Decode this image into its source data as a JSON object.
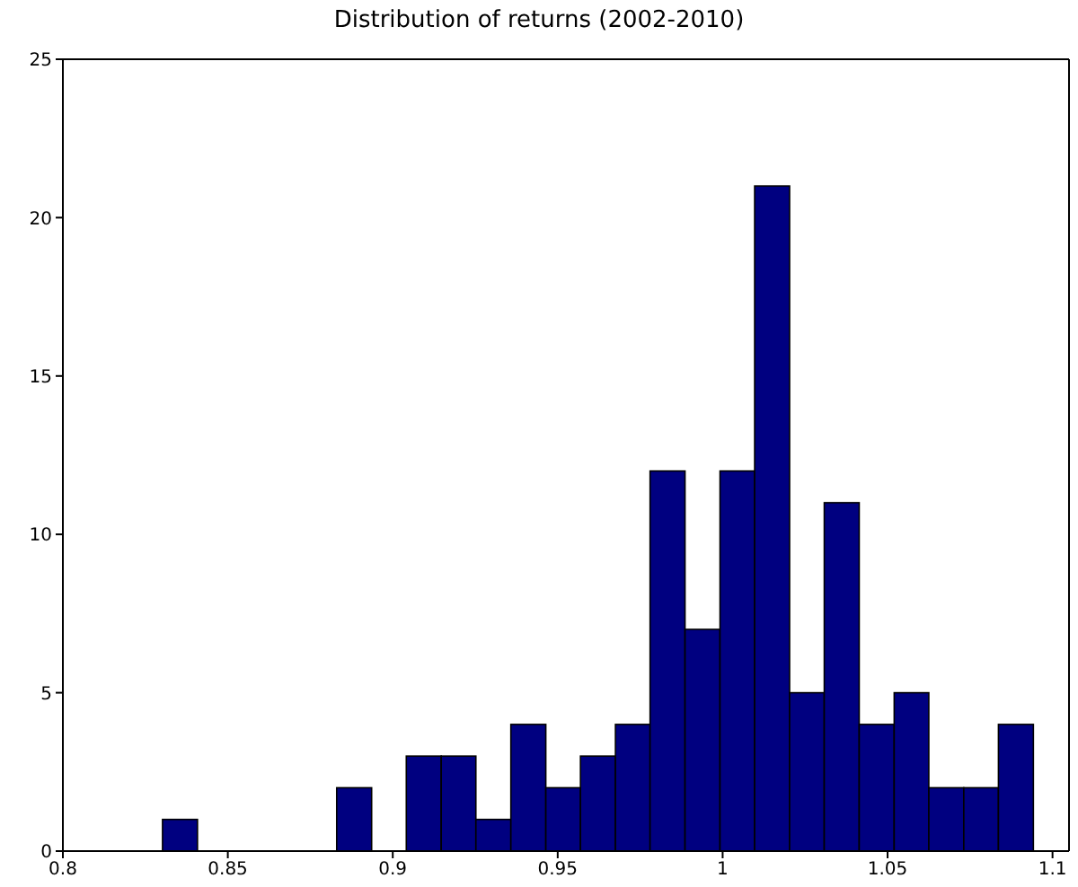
{
  "chart_data": {
    "type": "histogram",
    "title": "Distribution of returns (2002-2010)",
    "bins": [
      0.8302,
      0.8408,
      0.8513,
      0.8619,
      0.8724,
      0.883,
      0.8936,
      0.9041,
      0.9147,
      0.9252,
      0.9358,
      0.9464,
      0.9569,
      0.9675,
      0.978,
      0.9886,
      0.9992,
      1.0097,
      1.0203,
      1.0308,
      1.0414,
      1.052,
      1.0625,
      1.0731,
      1.0836,
      1.0942
    ],
    "values": [
      1,
      0,
      0,
      0,
      0,
      2,
      0,
      3,
      3,
      1,
      4,
      2,
      3,
      4,
      12,
      7,
      12,
      21,
      5,
      11,
      4,
      5,
      2,
      2,
      4
    ],
    "color": "#000080",
    "xlim": [
      0.8,
      1.105
    ],
    "xticks": [
      0.8,
      0.85,
      0.9,
      0.95,
      1,
      1.05,
      1.1
    ],
    "ylim": [
      0,
      25
    ],
    "yticks": [
      0,
      5,
      10,
      15,
      20,
      25
    ],
    "grid": false
  }
}
